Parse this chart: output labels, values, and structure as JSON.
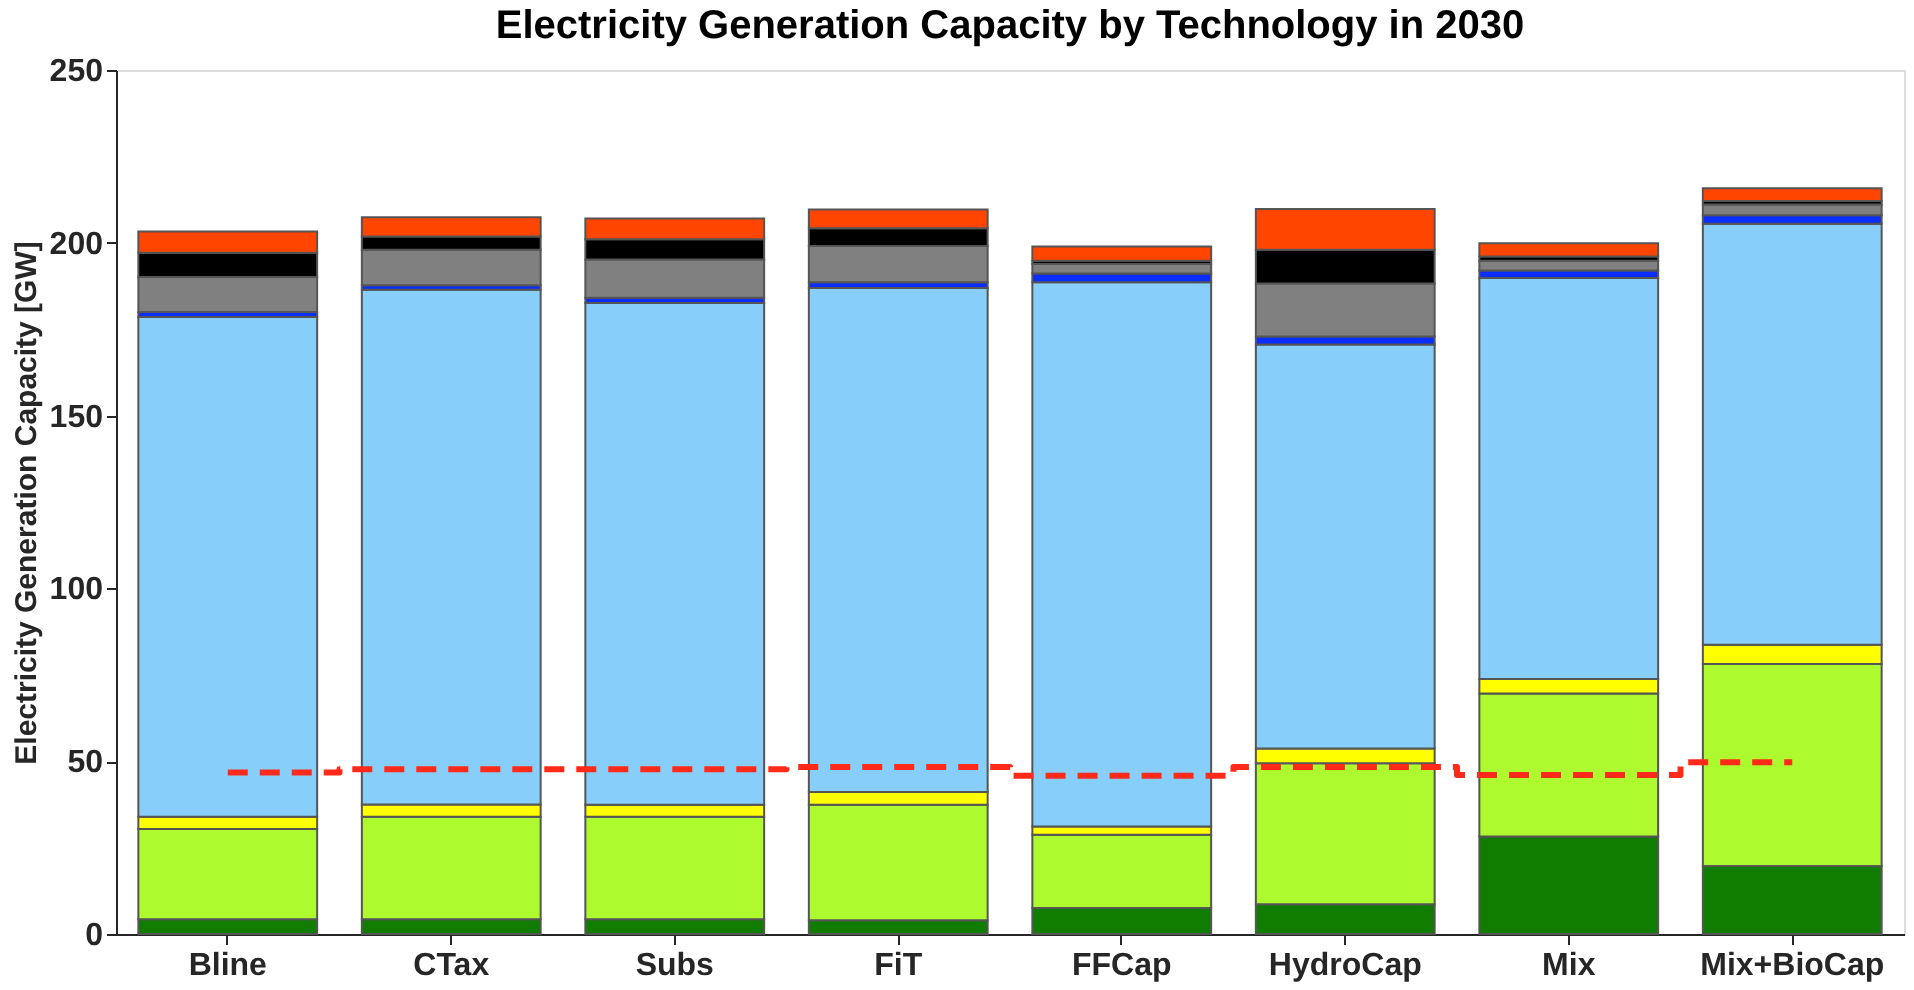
{
  "chart_data": {
    "type": "bar",
    "title": "Electricity Generation Capacity by Technology in 2030",
    "ylabel": "Electricity Generation Capacity [GW]",
    "categories": [
      "Bline",
      "CTax",
      "Subs",
      "FiT",
      "FFCap",
      "HydroCap",
      "Mix",
      "Mix+BioCap"
    ],
    "stacked": true,
    "ylim": [
      0,
      250
    ],
    "yticks": [
      0,
      50,
      100,
      150,
      200,
      250
    ],
    "grid": false,
    "legend": false,
    "series": [
      {
        "color": "#117d00",
        "values": [
          4.3,
          4.3,
          4.3,
          4.0,
          7.5,
          8.6,
          28.2,
          19.7
        ]
      },
      {
        "color": "#adfa2f",
        "values": [
          26.1,
          29.6,
          29.6,
          33.4,
          21.2,
          40.8,
          41.4,
          58.4
        ]
      },
      {
        "color": "#ffff00",
        "values": [
          3.5,
          3.6,
          3.5,
          3.7,
          2.4,
          4.3,
          4.2,
          5.6
        ]
      },
      {
        "color": "#87cefa",
        "values": [
          144.6,
          148.9,
          145.2,
          145.8,
          157.5,
          116.9,
          116.0,
          121.8
        ]
      },
      {
        "color": "#0a2eff",
        "values": [
          1.5,
          1.3,
          1.5,
          1.7,
          2.5,
          2.3,
          2.2,
          2.5
        ]
      },
      {
        "color": "#808080",
        "values": [
          10.1,
          10.3,
          11.1,
          10.5,
          2.8,
          15.3,
          2.8,
          3.1
        ]
      },
      {
        "color": "#000000",
        "values": [
          7.0,
          3.8,
          5.8,
          5.1,
          0.9,
          9.8,
          1.2,
          1.0
        ]
      },
      {
        "color": "#ff4500",
        "values": [
          6.2,
          5.6,
          6.0,
          5.4,
          4.1,
          11.8,
          3.9,
          3.7
        ]
      },
      {
        "type": "step",
        "line_style": "dashed",
        "color": "#ff2a1a",
        "values": [
          46.7,
          47.7,
          47.7,
          48.3,
          45.8,
          48.3,
          46.0,
          49.7
        ]
      }
    ]
  }
}
